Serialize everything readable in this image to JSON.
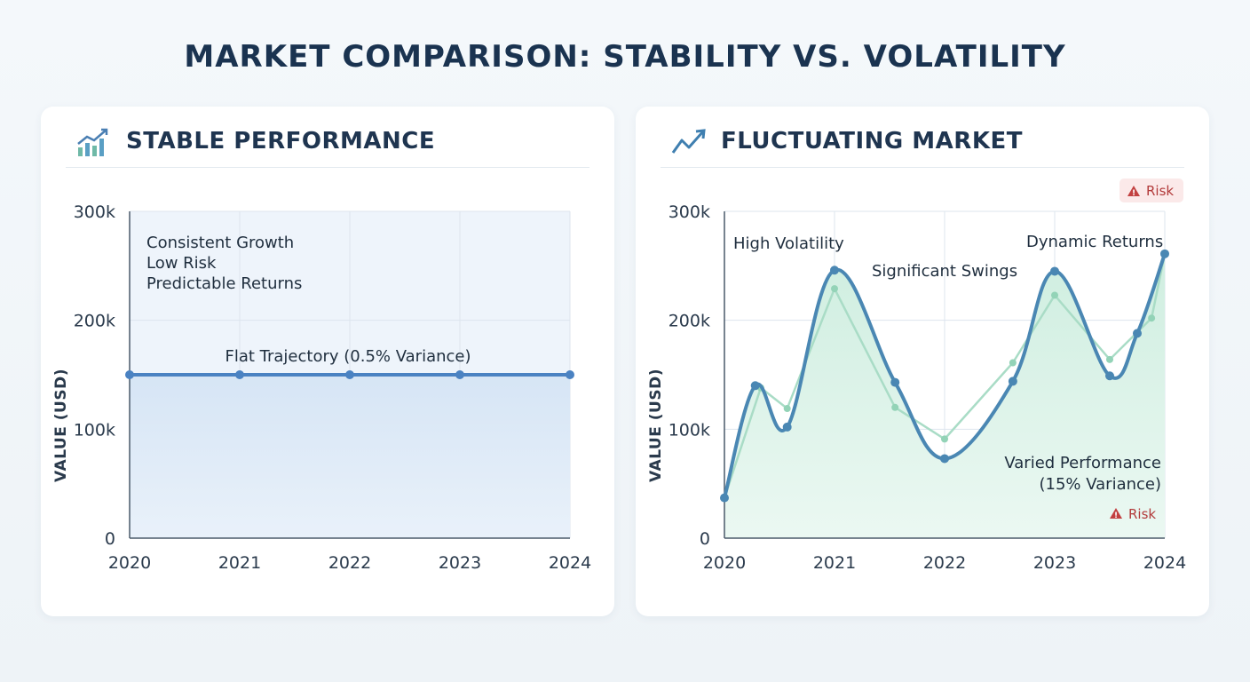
{
  "title": "MARKET COMPARISON: STABILITY VS. VOLATILITY",
  "colors": {
    "stable_line": "#4a82c2",
    "stable_fill": "#dbe8f6",
    "volatile_line": "#4a87b3",
    "volatile_secondary": "#93d3b7",
    "volatile_fill": "#d6f0e5",
    "risk": "#c24040"
  },
  "chart_data": [
    {
      "type": "line",
      "panel_title": "STABLE PERFORMANCE",
      "icon": "bar-chart-trend-icon",
      "ylabel": "VALUE (USD)",
      "xlabel": "",
      "x_ticks": [
        "2020",
        "2021",
        "2022",
        "2023",
        "2024"
      ],
      "y_ticks": [
        "0",
        "100k",
        "200k",
        "300k"
      ],
      "xlim": [
        2020,
        2024
      ],
      "ylim": [
        0,
        300000
      ],
      "grid": true,
      "series": [
        {
          "x": [
            2020,
            2021,
            2022,
            2023,
            2024
          ],
          "y": [
            150000,
            150000,
            150000,
            150000,
            150000
          ]
        }
      ],
      "annotations": [
        "Consistent Growth",
        "Low Risk",
        "Predictable Returns",
        "Flat Trajectory (0.5% Variance)"
      ]
    },
    {
      "type": "line",
      "panel_title": "FLUCTUATING MARKET",
      "icon": "trend-line-icon",
      "ylabel": "VALUE (USD)",
      "xlabel": "",
      "x_ticks": [
        "2020",
        "2021",
        "2022",
        "2023",
        "2024"
      ],
      "y_ticks": [
        "0",
        "100k",
        "200k",
        "300k"
      ],
      "xlim": [
        2020,
        2024
      ],
      "ylim": [
        0,
        300000
      ],
      "grid": true,
      "series": [
        {
          "x": [
            2020,
            2020.28,
            2020.57,
            2021,
            2021.55,
            2022,
            2022.62,
            2023,
            2023.5,
            2023.75,
            2024
          ],
          "y": [
            37000,
            140000,
            102000,
            246000,
            143000,
            73000,
            144000,
            245000,
            149000,
            188000,
            261000
          ]
        },
        {
          "x": [
            2020.33,
            2020.57,
            2021,
            2021.55,
            2022,
            2022.62,
            2023,
            2023.5,
            2023.88
          ],
          "y": [
            138000,
            119000,
            229000,
            120000,
            91000,
            161000,
            223000,
            164000,
            202000
          ]
        }
      ],
      "annotations": [
        "High Volatility",
        "Significant Swings",
        "Dynamic Returns",
        "Varied Performance",
        "(15% Variance)"
      ],
      "badges": [
        "Risk",
        "Risk"
      ]
    }
  ]
}
